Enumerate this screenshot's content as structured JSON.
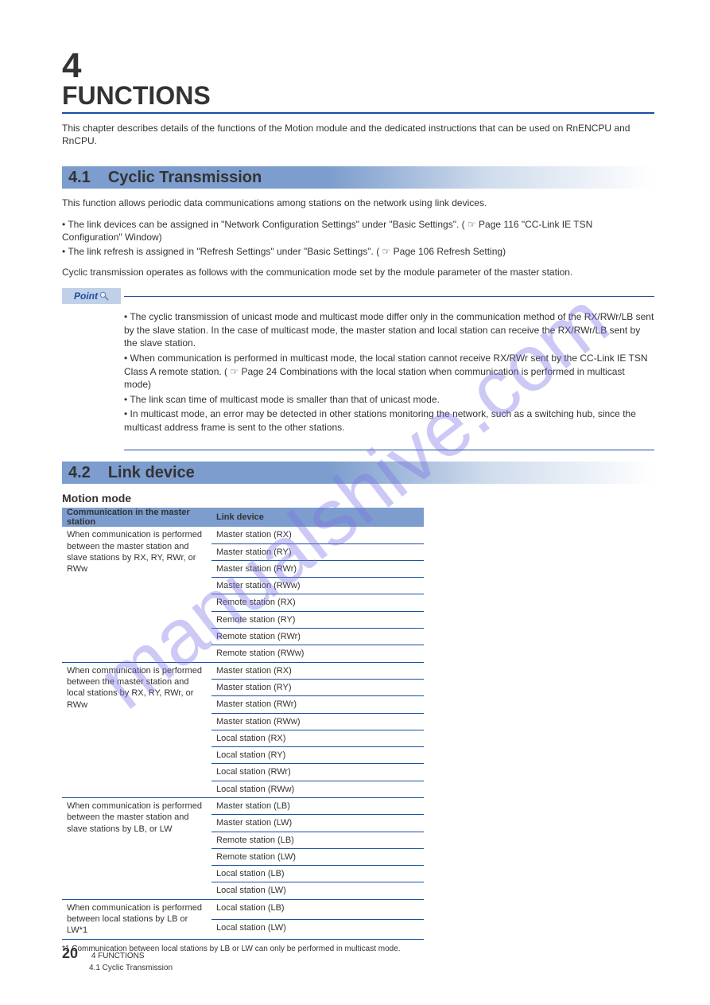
{
  "watermark": "manualshive.com",
  "chapter": {
    "number": "4",
    "title": "FUNCTIONS"
  },
  "intro_text": "This chapter describes details of the functions of the Motion module and the dedicated instructions that can be used on RnENCPU and RnCPU.",
  "section_4_1": {
    "number": "4.1",
    "title": "Cyclic Transmission",
    "body1": "This function allows periodic data communications among stations on the network using link devices.",
    "body2_bullets": [
      "The link devices can be assigned in \"Network Configuration Settings\" under \"Basic Settings\". ( ☞ Page 116 \"CC-Link IE TSN Configuration\" Window)",
      "The link refresh is assigned in \"Refresh Settings\" under \"Basic Settings\". ( ☞ Page 106 Refresh Setting)"
    ],
    "body3": "Cyclic transmission operates as follows with the communication mode set by the module parameter of the master station.",
    "point_label": "Point",
    "point_items": [
      "The cyclic transmission of unicast mode and multicast mode differ only in the communication method of the RX/RWr/LB sent by the slave station. In the case of multicast mode, the master station and local station can receive the RX/RWr/LB sent by the slave station.",
      "When communication is performed in multicast mode, the local station cannot receive RX/RWr sent by the CC-Link IE TSN Class A remote station. ( ☞ Page 24 Combinations with the local station when communication is performed in multicast mode)",
      "The link scan time of multicast mode is smaller than that of unicast mode.",
      "In multicast mode, an error may be detected in other stations monitoring the network, such as a switching hub, since the multicast address frame is sent to the other stations."
    ]
  },
  "section_4_2": {
    "number": "4.2",
    "title": "Link device",
    "caption": "Motion mode",
    "table": {
      "columns": [
        "Communication in the master station",
        "Link device"
      ],
      "groups": [
        {
          "left": "When communication is performed between the master station and slave stations by RX, RY, RWr, or RWw",
          "rows": [
            "Master station (RX)",
            "Master station (RY)",
            "Master station (RWr)",
            "Master station (RWw)",
            "Remote station (RX)",
            "Remote station (RY)",
            "Remote station (RWr)",
            "Remote station (RWw)"
          ]
        },
        {
          "left": "When communication is performed between the master station and local stations by RX, RY, RWr, or RWw",
          "rows": [
            "Master station (RX)",
            "Master station (RY)",
            "Master station (RWr)",
            "Master station (RWw)",
            "Local station (RX)",
            "Local station (RY)",
            "Local station (RWr)",
            "Local station (RWw)"
          ]
        },
        {
          "left": "When communication is performed between the master station and slave stations by LB, or LW",
          "rows": [
            "Master station (LB)",
            "Master station (LW)",
            "Remote station (LB)",
            "Remote station (LW)",
            "Local station (LB)",
            "Local station (LW)"
          ]
        },
        {
          "left": "When communication is performed between local stations by LB or LW*1",
          "rows": [
            "Local station (LB)",
            "Local station (LW)"
          ]
        }
      ]
    },
    "footnote": "*1   Communication between local stations by LB or LW can only be performed in multicast mode."
  },
  "footer": {
    "page": "20",
    "line1": "4 FUNCTIONS",
    "line2": "4.1 Cyclic Transmission"
  },
  "colors": {
    "rule": "#1a4fa0",
    "bar_left": "#7c9dcd",
    "bar_mid": "#cfdcec",
    "badge_bg": "#bfd0e8",
    "watermark": "#7b72e8"
  }
}
